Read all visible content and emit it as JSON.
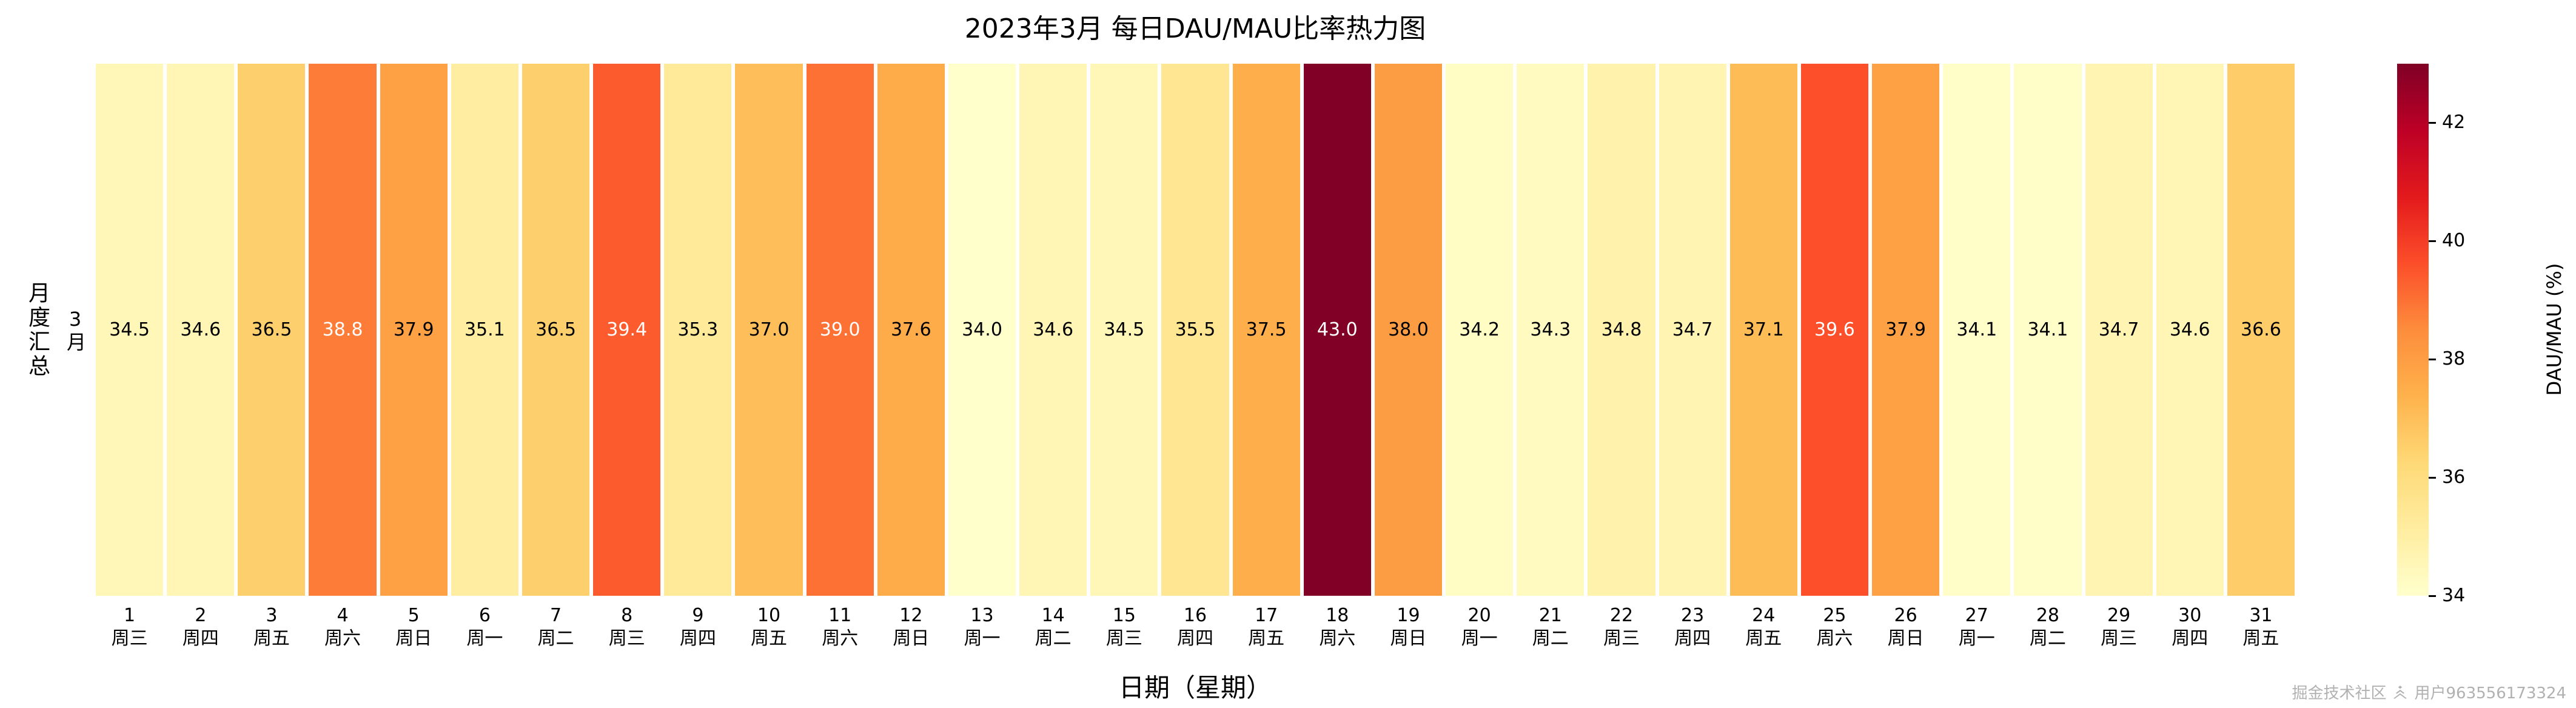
{
  "chart_data": {
    "type": "heatmap",
    "title": "2023年3月  每日DAU/MAU比率热力图",
    "xlabel": "日期（星期）",
    "ylabel": "月度汇总",
    "row_label": "3月",
    "colorbar_label": "DAU/MAU (%)",
    "colorbar_ticks": [
      34,
      36,
      38,
      40,
      42
    ],
    "vmin": 34.0,
    "vmax": 43.0,
    "value_decimals": 1,
    "colormap": "YlOrRd",
    "colormap_stops": [
      "#ffffcc",
      "#ffeda0",
      "#fed976",
      "#feb24c",
      "#fd8d3c",
      "#fc4e2a",
      "#e31a1c",
      "#bd0026",
      "#800026"
    ],
    "columns": [
      {
        "day": "1",
        "weekday": "周三",
        "value": 34.5
      },
      {
        "day": "2",
        "weekday": "周四",
        "value": 34.6
      },
      {
        "day": "3",
        "weekday": "周五",
        "value": 36.5
      },
      {
        "day": "4",
        "weekday": "周六",
        "value": 38.8
      },
      {
        "day": "5",
        "weekday": "周日",
        "value": 37.9
      },
      {
        "day": "6",
        "weekday": "周一",
        "value": 35.1
      },
      {
        "day": "7",
        "weekday": "周二",
        "value": 36.5
      },
      {
        "day": "8",
        "weekday": "周三",
        "value": 39.4
      },
      {
        "day": "9",
        "weekday": "周四",
        "value": 35.3
      },
      {
        "day": "10",
        "weekday": "周五",
        "value": 37.0
      },
      {
        "day": "11",
        "weekday": "周六",
        "value": 39.0
      },
      {
        "day": "12",
        "weekday": "周日",
        "value": 37.6
      },
      {
        "day": "13",
        "weekday": "周一",
        "value": 34.0
      },
      {
        "day": "14",
        "weekday": "周二",
        "value": 34.6
      },
      {
        "day": "15",
        "weekday": "周三",
        "value": 34.5
      },
      {
        "day": "16",
        "weekday": "周四",
        "value": 35.5
      },
      {
        "day": "17",
        "weekday": "周五",
        "value": 37.5
      },
      {
        "day": "18",
        "weekday": "周六",
        "value": 43.0
      },
      {
        "day": "19",
        "weekday": "周日",
        "value": 38.0
      },
      {
        "day": "20",
        "weekday": "周一",
        "value": 34.2
      },
      {
        "day": "21",
        "weekday": "周二",
        "value": 34.3
      },
      {
        "day": "22",
        "weekday": "周三",
        "value": 34.8
      },
      {
        "day": "23",
        "weekday": "周四",
        "value": 34.7
      },
      {
        "day": "24",
        "weekday": "周五",
        "value": 37.1
      },
      {
        "day": "25",
        "weekday": "周六",
        "value": 39.6
      },
      {
        "day": "26",
        "weekday": "周日",
        "value": 37.9
      },
      {
        "day": "27",
        "weekday": "周一",
        "value": 34.1
      },
      {
        "day": "28",
        "weekday": "周二",
        "value": 34.1
      },
      {
        "day": "29",
        "weekday": "周三",
        "value": 34.7
      },
      {
        "day": "30",
        "weekday": "周四",
        "value": 34.6
      },
      {
        "day": "31",
        "weekday": "周五",
        "value": 36.6
      }
    ]
  },
  "watermark": {
    "site": "掘金技术社区",
    "user": "用户963556173324"
  }
}
